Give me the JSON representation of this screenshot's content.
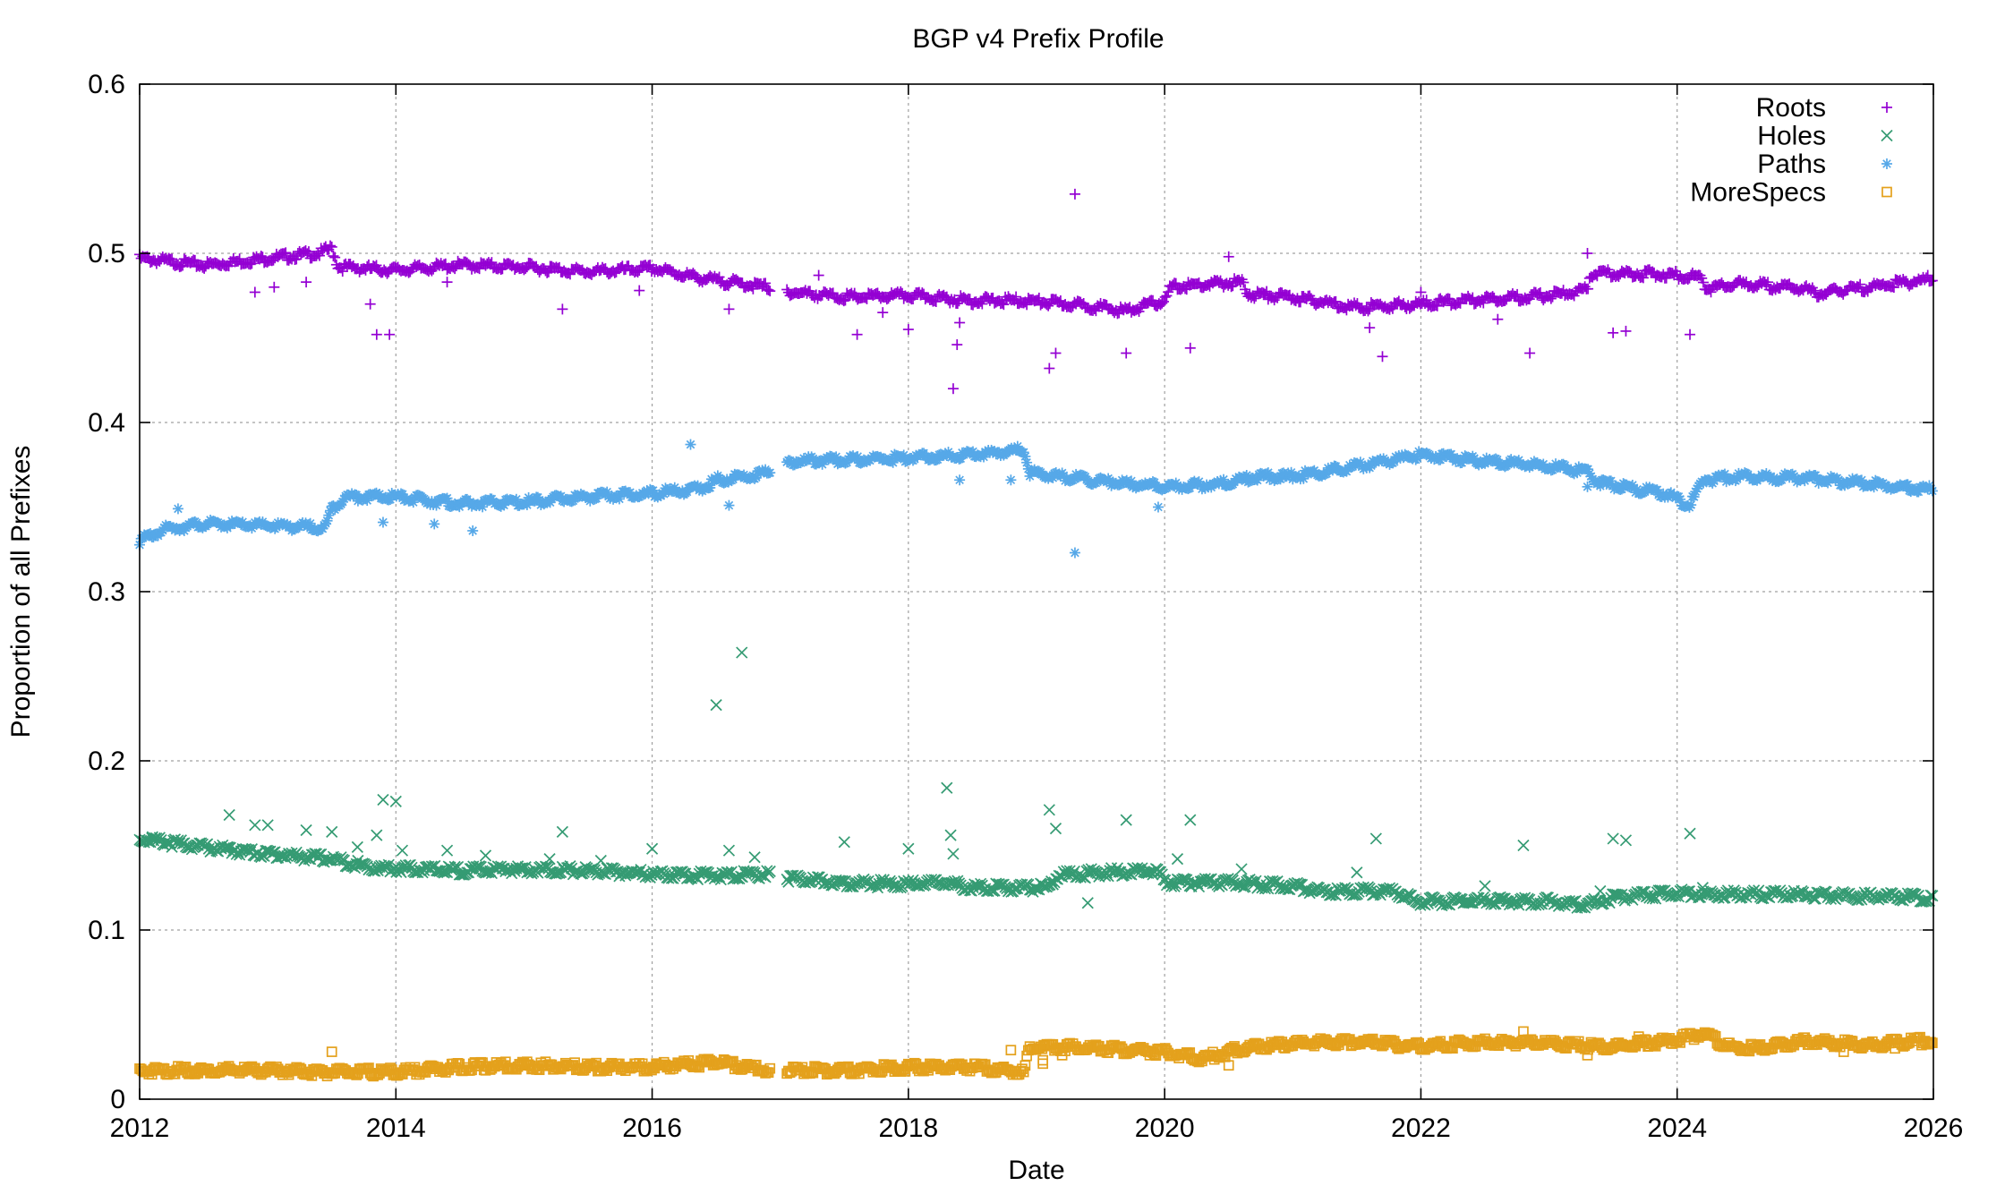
{
  "chart_data": {
    "type": "scatter",
    "title": "BGP v4 Prefix Profile",
    "xlabel": "Date",
    "ylabel": "Proportion of all Prefixes",
    "xlim": [
      2012,
      2026
    ],
    "ylim": [
      0,
      0.6
    ],
    "x_ticks": [
      2012,
      2014,
      2016,
      2018,
      2020,
      2022,
      2024,
      2026
    ],
    "x_tick_labels": [
      "2012",
      "2014",
      "2016",
      "2018",
      "2020",
      "2022",
      "2024",
      "2026"
    ],
    "y_ticks": [
      0,
      0.1,
      0.2,
      0.3,
      0.4,
      0.5,
      0.6
    ],
    "y_tick_labels": [
      "0",
      "0.1",
      "0.2",
      "0.3",
      "0.4",
      "0.5",
      "0.6"
    ],
    "grid": true,
    "legend_position": "top-right",
    "series": [
      {
        "name": "Roots",
        "marker": "plus",
        "color": "#9400d3",
        "trend": [
          [
            2012.0,
            0.497
          ],
          [
            2012.5,
            0.493
          ],
          [
            2013.0,
            0.497
          ],
          [
            2013.4,
            0.5
          ],
          [
            2013.5,
            0.503
          ],
          [
            2013.55,
            0.492
          ],
          [
            2014.0,
            0.49
          ],
          [
            2014.5,
            0.493
          ],
          [
            2015.0,
            0.492
          ],
          [
            2015.5,
            0.489
          ],
          [
            2016.0,
            0.491
          ],
          [
            2016.4,
            0.485
          ],
          [
            2016.9,
            0.48
          ],
          [
            2017.1,
            0.477
          ],
          [
            2017.5,
            0.474
          ],
          [
            2018.0,
            0.475
          ],
          [
            2018.5,
            0.472
          ],
          [
            2018.9,
            0.472
          ],
          [
            2019.4,
            0.469
          ],
          [
            2019.7,
            0.466
          ],
          [
            2020.0,
            0.472
          ],
          [
            2020.05,
            0.48
          ],
          [
            2020.6,
            0.483
          ],
          [
            2020.65,
            0.476
          ],
          [
            2021.0,
            0.474
          ],
          [
            2021.5,
            0.468
          ],
          [
            2022.0,
            0.47
          ],
          [
            2022.5,
            0.473
          ],
          [
            2023.0,
            0.475
          ],
          [
            2023.3,
            0.478
          ],
          [
            2023.32,
            0.488
          ],
          [
            2023.8,
            0.488
          ],
          [
            2024.2,
            0.486
          ],
          [
            2024.22,
            0.479
          ],
          [
            2024.5,
            0.482
          ],
          [
            2025.0,
            0.479
          ],
          [
            2025.1,
            0.476
          ],
          [
            2025.5,
            0.48
          ],
          [
            2026.0,
            0.485
          ]
        ],
        "outliers": [
          [
            2012.9,
            0.477
          ],
          [
            2013.05,
            0.48
          ],
          [
            2013.3,
            0.483
          ],
          [
            2013.8,
            0.47
          ],
          [
            2013.85,
            0.452
          ],
          [
            2013.95,
            0.452
          ],
          [
            2014.4,
            0.483
          ],
          [
            2015.3,
            0.467
          ],
          [
            2015.9,
            0.478
          ],
          [
            2016.6,
            0.467
          ],
          [
            2017.3,
            0.487
          ],
          [
            2017.6,
            0.452
          ],
          [
            2017.8,
            0.465
          ],
          [
            2018.0,
            0.455
          ],
          [
            2018.35,
            0.42
          ],
          [
            2018.38,
            0.446
          ],
          [
            2018.4,
            0.459
          ],
          [
            2019.1,
            0.432
          ],
          [
            2019.15,
            0.441
          ],
          [
            2019.3,
            0.535
          ],
          [
            2019.7,
            0.441
          ],
          [
            2020.2,
            0.444
          ],
          [
            2020.5,
            0.498
          ],
          [
            2021.6,
            0.456
          ],
          [
            2021.7,
            0.439
          ],
          [
            2022.0,
            0.477
          ],
          [
            2022.6,
            0.461
          ],
          [
            2022.85,
            0.441
          ],
          [
            2023.3,
            0.5
          ],
          [
            2023.5,
            0.453
          ],
          [
            2023.6,
            0.454
          ],
          [
            2024.1,
            0.452
          ]
        ]
      },
      {
        "name": "Holes",
        "marker": "cross",
        "color": "#359b73",
        "trend": [
          [
            2012.0,
            0.154
          ],
          [
            2012.5,
            0.149
          ],
          [
            2013.0,
            0.145
          ],
          [
            2013.5,
            0.142
          ],
          [
            2013.8,
            0.137
          ],
          [
            2014.5,
            0.135
          ],
          [
            2015.0,
            0.136
          ],
          [
            2015.5,
            0.135
          ],
          [
            2016.0,
            0.133
          ],
          [
            2016.5,
            0.132
          ],
          [
            2016.9,
            0.133
          ],
          [
            2017.1,
            0.13
          ],
          [
            2017.5,
            0.128
          ],
          [
            2018.0,
            0.127
          ],
          [
            2018.3,
            0.128
          ],
          [
            2018.5,
            0.125
          ],
          [
            2019.1,
            0.125
          ],
          [
            2019.15,
            0.132
          ],
          [
            2019.5,
            0.134
          ],
          [
            2019.95,
            0.135
          ],
          [
            2020.0,
            0.128
          ],
          [
            2020.5,
            0.128
          ],
          [
            2021.0,
            0.126
          ],
          [
            2021.2,
            0.123
          ],
          [
            2021.8,
            0.123
          ],
          [
            2021.95,
            0.117
          ],
          [
            2022.5,
            0.117
          ],
          [
            2023.0,
            0.117
          ],
          [
            2023.3,
            0.115
          ],
          [
            2023.5,
            0.119
          ],
          [
            2024.0,
            0.122
          ],
          [
            2024.5,
            0.121
          ],
          [
            2025.0,
            0.121
          ],
          [
            2025.5,
            0.12
          ],
          [
            2026.0,
            0.119
          ]
        ],
        "outliers": [
          [
            2012.1,
            0.155
          ],
          [
            2012.7,
            0.168
          ],
          [
            2012.9,
            0.162
          ],
          [
            2013.0,
            0.162
          ],
          [
            2013.3,
            0.159
          ],
          [
            2013.5,
            0.158
          ],
          [
            2013.7,
            0.149
          ],
          [
            2013.9,
            0.177
          ],
          [
            2014.0,
            0.176
          ],
          [
            2013.85,
            0.156
          ],
          [
            2014.05,
            0.147
          ],
          [
            2014.4,
            0.147
          ],
          [
            2014.7,
            0.144
          ],
          [
            2015.2,
            0.142
          ],
          [
            2015.3,
            0.158
          ],
          [
            2015.6,
            0.141
          ],
          [
            2016.0,
            0.148
          ],
          [
            2016.5,
            0.233
          ],
          [
            2016.6,
            0.147
          ],
          [
            2016.7,
            0.264
          ],
          [
            2016.8,
            0.143
          ],
          [
            2017.5,
            0.152
          ],
          [
            2018.0,
            0.148
          ],
          [
            2018.3,
            0.184
          ],
          [
            2018.33,
            0.156
          ],
          [
            2018.35,
            0.145
          ],
          [
            2019.1,
            0.171
          ],
          [
            2019.15,
            0.16
          ],
          [
            2019.4,
            0.116
          ],
          [
            2019.7,
            0.165
          ],
          [
            2020.1,
            0.142
          ],
          [
            2020.2,
            0.165
          ],
          [
            2020.6,
            0.136
          ],
          [
            2021.5,
            0.134
          ],
          [
            2021.65,
            0.154
          ],
          [
            2022.5,
            0.126
          ],
          [
            2022.8,
            0.15
          ],
          [
            2023.4,
            0.123
          ],
          [
            2023.5,
            0.154
          ],
          [
            2023.6,
            0.153
          ],
          [
            2024.1,
            0.157
          ],
          [
            2024.2,
            0.125
          ]
        ]
      },
      {
        "name": "Paths",
        "marker": "star",
        "color": "#56a8e8",
        "trend": [
          [
            2012.0,
            0.33
          ],
          [
            2012.2,
            0.337
          ],
          [
            2012.5,
            0.34
          ],
          [
            2013.0,
            0.339
          ],
          [
            2013.45,
            0.338
          ],
          [
            2013.5,
            0.349
          ],
          [
            2013.6,
            0.356
          ],
          [
            2014.0,
            0.356
          ],
          [
            2014.5,
            0.352
          ],
          [
            2015.0,
            0.353
          ],
          [
            2015.5,
            0.356
          ],
          [
            2016.0,
            0.358
          ],
          [
            2016.4,
            0.361
          ],
          [
            2016.5,
            0.366
          ],
          [
            2016.9,
            0.37
          ],
          [
            2017.1,
            0.377
          ],
          [
            2017.5,
            0.378
          ],
          [
            2018.0,
            0.379
          ],
          [
            2018.5,
            0.381
          ],
          [
            2018.9,
            0.384
          ],
          [
            2018.95,
            0.37
          ],
          [
            2019.2,
            0.368
          ],
          [
            2019.5,
            0.365
          ],
          [
            2020.0,
            0.362
          ],
          [
            2020.5,
            0.364
          ],
          [
            2020.7,
            0.368
          ],
          [
            2021.0,
            0.368
          ],
          [
            2021.5,
            0.374
          ],
          [
            2022.0,
            0.381
          ],
          [
            2022.5,
            0.377
          ],
          [
            2023.0,
            0.374
          ],
          [
            2023.3,
            0.371
          ],
          [
            2023.4,
            0.364
          ],
          [
            2023.9,
            0.358
          ],
          [
            2024.1,
            0.351
          ],
          [
            2024.2,
            0.366
          ],
          [
            2024.5,
            0.368
          ],
          [
            2025.0,
            0.367
          ],
          [
            2025.5,
            0.364
          ],
          [
            2026.0,
            0.36
          ]
        ],
        "outliers": [
          [
            2012.3,
            0.349
          ],
          [
            2013.9,
            0.341
          ],
          [
            2014.3,
            0.34
          ],
          [
            2014.6,
            0.336
          ],
          [
            2016.3,
            0.387
          ],
          [
            2016.6,
            0.351
          ],
          [
            2018.4,
            0.366
          ],
          [
            2018.8,
            0.366
          ],
          [
            2019.3,
            0.323
          ],
          [
            2019.95,
            0.35
          ],
          [
            2023.3,
            0.362
          ]
        ]
      },
      {
        "name": "MoreSpecs",
        "marker": "square",
        "color": "#e4a11c",
        "trend": [
          [
            2012.0,
            0.017
          ],
          [
            2013.0,
            0.017
          ],
          [
            2013.5,
            0.016
          ],
          [
            2014.0,
            0.016
          ],
          [
            2014.5,
            0.019
          ],
          [
            2015.0,
            0.02
          ],
          [
            2015.5,
            0.019
          ],
          [
            2016.0,
            0.019
          ],
          [
            2016.5,
            0.022
          ],
          [
            2016.9,
            0.017
          ],
          [
            2017.1,
            0.017
          ],
          [
            2017.5,
            0.017
          ],
          [
            2018.0,
            0.019
          ],
          [
            2018.5,
            0.019
          ],
          [
            2018.9,
            0.016
          ],
          [
            2018.95,
            0.031
          ],
          [
            2019.2,
            0.031
          ],
          [
            2019.5,
            0.03
          ],
          [
            2020.0,
            0.028
          ],
          [
            2020.3,
            0.024
          ],
          [
            2020.6,
            0.03
          ],
          [
            2021.0,
            0.033
          ],
          [
            2021.5,
            0.034
          ],
          [
            2022.0,
            0.031
          ],
          [
            2022.5,
            0.034
          ],
          [
            2023.0,
            0.033
          ],
          [
            2023.5,
            0.031
          ],
          [
            2024.0,
            0.035
          ],
          [
            2024.2,
            0.039
          ],
          [
            2024.4,
            0.031
          ],
          [
            2024.6,
            0.03
          ],
          [
            2025.0,
            0.034
          ],
          [
            2025.5,
            0.032
          ],
          [
            2026.0,
            0.035
          ]
        ],
        "outliers": [
          [
            2013.5,
            0.028
          ],
          [
            2019.05,
            0.023
          ],
          [
            2019.05,
            0.021
          ],
          [
            2018.8,
            0.029
          ],
          [
            2019.2,
            0.026
          ],
          [
            2020.5,
            0.02
          ],
          [
            2022.8,
            0.04
          ],
          [
            2023.3,
            0.026
          ],
          [
            2023.7,
            0.037
          ],
          [
            2024.1,
            0.039
          ],
          [
            2025.3,
            0.028
          ],
          [
            2025.7,
            0.03
          ]
        ]
      }
    ]
  }
}
